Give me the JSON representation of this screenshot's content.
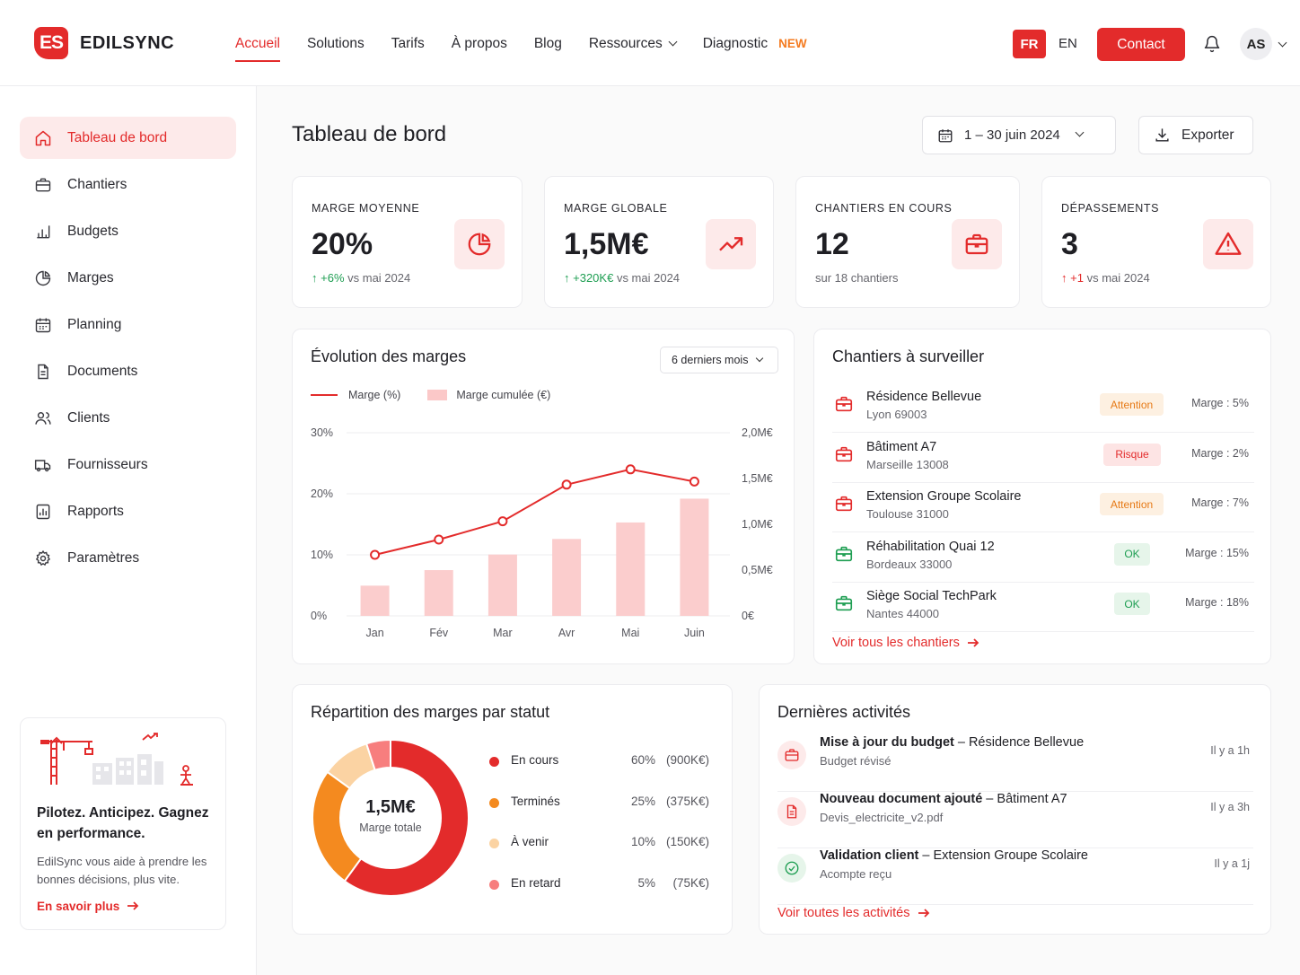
{
  "brand": {
    "logo_initials": "ES",
    "name": "EDILSYNC"
  },
  "nav": {
    "items": [
      "Accueil",
      "Solutions",
      "Tarifs",
      "À propos",
      "Blog",
      "Ressources",
      "Diagnostic"
    ],
    "new_badge": "NEW",
    "lang_active": "FR",
    "lang_other": "EN",
    "contact_label": "Contact",
    "avatar_initials": "AS"
  },
  "sidebar": {
    "items": [
      "Tableau de bord",
      "Chantiers",
      "Budgets",
      "Marges",
      "Planning",
      "Documents",
      "Clients",
      "Fournisseurs",
      "Rapports",
      "Paramètres"
    ],
    "promo": {
      "title": "Pilotez. Anticipez. Gagnez en performance.",
      "text": "EdilSync vous aide à prendre les bonnes décisions, plus vite.",
      "link": "En savoir plus"
    }
  },
  "header": {
    "title": "Tableau de bord",
    "date_range": "1 – 30 juin 2024",
    "export_label": "Exporter"
  },
  "kpis": [
    {
      "label": "MARGE MOYENNE",
      "value": "20%",
      "delta": "+6%",
      "delta_suffix": "vs mai 2024",
      "icon": "pie-chart-icon"
    },
    {
      "label": "MARGE GLOBALE",
      "value": "1,5M€",
      "delta": "+320K€",
      "delta_suffix": "vs mai 2024",
      "icon": "trend-up-icon"
    },
    {
      "label": "CHANTIERS EN COURS",
      "value": "12",
      "sub": "sur 18 chantiers",
      "icon": "briefcase-icon"
    },
    {
      "label": "DÉPASSEMENTS",
      "value": "3",
      "delta": "+1",
      "delta_suffix": "vs mai 2024",
      "icon": "warning-icon"
    }
  ],
  "evolution": {
    "title": "Évolution des marges",
    "period_select": "6 derniers mois",
    "legend_line": "Marge (%)",
    "legend_bar": "Marge cumulée (€)"
  },
  "chart_data": {
    "type": "bar",
    "categories": [
      "Jan",
      "Fév",
      "Mar",
      "Avr",
      "Mai",
      "Juin"
    ],
    "series": [
      {
        "name": "Marge (%)",
        "type": "line",
        "axis": "left",
        "values": [
          10,
          12.5,
          15.5,
          21.5,
          24,
          22
        ]
      },
      {
        "name": "Marge cumulée (€)",
        "type": "bar",
        "axis": "right",
        "values": [
          0.33,
          0.5,
          0.67,
          0.84,
          1.02,
          1.28
        ]
      }
    ],
    "y_left": {
      "ticks": [
        "0%",
        "10%",
        "20%",
        "30%"
      ],
      "range": [
        0,
        30
      ]
    },
    "y_right": {
      "ticks": [
        "0€",
        "0,5M€",
        "1,0M€",
        "1,5M€",
        "2,0M€"
      ],
      "range": [
        0,
        2.0
      ]
    },
    "grid": true
  },
  "watch": {
    "title": "Chantiers à surveiller",
    "items": [
      {
        "name": "Résidence Bellevue",
        "city": "Lyon 69003",
        "status": "Attention",
        "status_kind": "attention",
        "marge": "Marge : 5%"
      },
      {
        "name": "Bâtiment A7",
        "city": "Marseille 13008",
        "status": "Risque",
        "status_kind": "risque",
        "marge": "Marge : 2%"
      },
      {
        "name": "Extension Groupe Scolaire",
        "city": "Toulouse 31000",
        "status": "Attention",
        "status_kind": "attention",
        "marge": "Marge : 7%"
      },
      {
        "name": "Réhabilitation Quai 12",
        "city": "Bordeaux 33000",
        "status": "OK",
        "status_kind": "ok",
        "marge": "Marge : 15%"
      },
      {
        "name": "Siège Social TechPark",
        "city": "Nantes 44000",
        "status": "OK",
        "status_kind": "ok",
        "marge": "Marge : 18%"
      }
    ],
    "link": "Voir tous les chantiers"
  },
  "repartition": {
    "title": "Répartition des marges par statut",
    "center_value": "1,5M€",
    "center_label": "Marge totale",
    "items": [
      {
        "name": "En cours",
        "pct": "60%",
        "amount": "(900K€)",
        "value": 60,
        "color": "#e32b2b"
      },
      {
        "name": "Terminés",
        "pct": "25%",
        "amount": "(375K€)",
        "value": 25,
        "color": "#f48a1f"
      },
      {
        "name": "À venir",
        "pct": "10%",
        "amount": "(150K€)",
        "value": 10,
        "color": "#fbd3a3"
      },
      {
        "name": "En retard",
        "pct": "5%",
        "amount": "(75K€)",
        "value": 5,
        "color": "#f77e7e"
      }
    ]
  },
  "activities": {
    "title": "Dernières activités",
    "items": [
      {
        "bold": "Mise à jour du budget",
        "rest": " – Résidence Bellevue",
        "sub": "Budget révisé",
        "time": "Il y a 1h",
        "icon": "briefcase-icon"
      },
      {
        "bold": "Nouveau document ajouté",
        "rest": " – Bâtiment A7",
        "sub": "Devis_electricite_v2.pdf",
        "time": "Il y a 3h",
        "icon": "document-icon"
      },
      {
        "bold": "Validation client",
        "rest": " – Extension Groupe Scolaire",
        "sub": "Acompte reçu",
        "time": "Il y a 1j",
        "icon": "check-circle-icon"
      }
    ],
    "link": "Voir toutes les activités"
  }
}
